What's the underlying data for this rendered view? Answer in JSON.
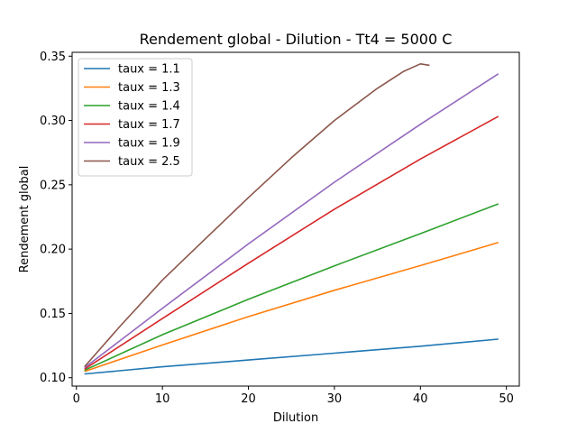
{
  "chart_data": {
    "type": "line",
    "title": "Rendement global - Dilution - Tt4 = 5000 C",
    "xlabel": "Dilution",
    "ylabel": "Rendement global",
    "xlim": [
      -0.5,
      51.5
    ],
    "ylim": [
      0.0935,
      0.353
    ],
    "xticks": [
      0,
      10,
      20,
      30,
      40,
      50
    ],
    "yticks": [
      0.1,
      0.15,
      0.2,
      0.25,
      0.3,
      0.35
    ],
    "ytick_labels": [
      "0.10",
      "0.15",
      "0.20",
      "0.25",
      "0.30",
      "0.35"
    ],
    "grid": false,
    "legend_position": "top-left",
    "series": [
      {
        "name": "taux = 1.1",
        "color": "#1f77b4",
        "points": [
          [
            1,
            0.103
          ],
          [
            10,
            0.1085
          ],
          [
            20,
            0.1138
          ],
          [
            30,
            0.1191
          ],
          [
            40,
            0.1245
          ],
          [
            49,
            0.13
          ]
        ]
      },
      {
        "name": "taux = 1.3",
        "color": "#ff7f0e",
        "points": [
          [
            1,
            0.105
          ],
          [
            10,
            0.1255
          ],
          [
            20,
            0.1475
          ],
          [
            30,
            0.168
          ],
          [
            40,
            0.1872
          ],
          [
            49,
            0.205
          ]
        ]
      },
      {
        "name": "taux = 1.4",
        "color": "#2ca02c",
        "points": [
          [
            1,
            0.106
          ],
          [
            10,
            0.1335
          ],
          [
            20,
            0.161
          ],
          [
            30,
            0.187
          ],
          [
            40,
            0.212
          ],
          [
            49,
            0.235
          ]
        ]
      },
      {
        "name": "taux = 1.7",
        "color": "#d62728",
        "points": [
          [
            1,
            0.107
          ],
          [
            10,
            0.146
          ],
          [
            20,
            0.189
          ],
          [
            30,
            0.231
          ],
          [
            40,
            0.27
          ],
          [
            49,
            0.303
          ]
        ]
      },
      {
        "name": "taux = 1.9",
        "color": "#9467bd",
        "points": [
          [
            1,
            0.108
          ],
          [
            10,
            0.154
          ],
          [
            20,
            0.204
          ],
          [
            30,
            0.252
          ],
          [
            40,
            0.297
          ],
          [
            49,
            0.336
          ]
        ]
      },
      {
        "name": "taux = 2.5",
        "color": "#8c564b",
        "points": [
          [
            1,
            0.109
          ],
          [
            5,
            0.1395
          ],
          [
            10,
            0.176
          ],
          [
            15,
            0.208
          ],
          [
            20,
            0.24
          ],
          [
            25,
            0.271
          ],
          [
            30,
            0.3
          ],
          [
            35,
            0.325
          ],
          [
            38,
            0.338
          ],
          [
            40,
            0.344
          ],
          [
            41,
            0.343
          ]
        ]
      }
    ]
  }
}
